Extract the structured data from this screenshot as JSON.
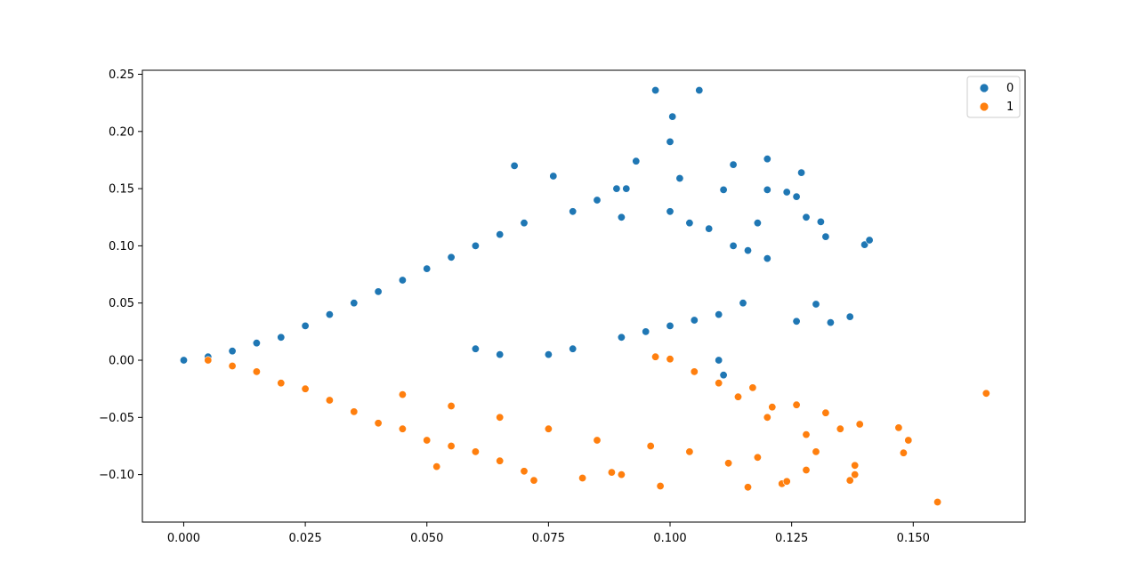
{
  "chart_data": {
    "type": "scatter",
    "title": "",
    "xlabel": "",
    "ylabel": "",
    "xlim": [
      -0.0085,
      0.173
    ],
    "ylim": [
      -0.1415,
      0.2535
    ],
    "xticks": [
      0.0,
      0.025,
      0.05,
      0.075,
      0.1,
      0.125,
      0.15
    ],
    "xtick_labels": [
      "0.000",
      "0.025",
      "0.050",
      "0.075",
      "0.100",
      "0.125",
      "0.150"
    ],
    "yticks": [
      -0.1,
      -0.05,
      0.0,
      0.05,
      0.1,
      0.15,
      0.2,
      0.25
    ],
    "ytick_labels": [
      "−0.10",
      "−0.05",
      "0.00",
      "0.05",
      "0.10",
      "0.15",
      "0.20",
      "0.25"
    ],
    "grid": false,
    "legend": {
      "position": "top-right",
      "entries": [
        "0",
        "1"
      ]
    },
    "series": [
      {
        "name": "0",
        "color": "#1f77b4",
        "points": [
          [
            0.0,
            0.0
          ],
          [
            0.005,
            0.003
          ],
          [
            0.01,
            0.008
          ],
          [
            0.015,
            0.015
          ],
          [
            0.02,
            0.02
          ],
          [
            0.025,
            0.03
          ],
          [
            0.03,
            0.04
          ],
          [
            0.035,
            0.05
          ],
          [
            0.04,
            0.06
          ],
          [
            0.045,
            0.07
          ],
          [
            0.05,
            0.08
          ],
          [
            0.055,
            0.09
          ],
          [
            0.06,
            0.1
          ],
          [
            0.065,
            0.11
          ],
          [
            0.07,
            0.12
          ],
          [
            0.068,
            0.17
          ],
          [
            0.076,
            0.161
          ],
          [
            0.093,
            0.174
          ],
          [
            0.097,
            0.236
          ],
          [
            0.106,
            0.236
          ],
          [
            0.1005,
            0.213
          ],
          [
            0.1,
            0.191
          ],
          [
            0.102,
            0.159
          ],
          [
            0.113,
            0.171
          ],
          [
            0.12,
            0.176
          ],
          [
            0.127,
            0.164
          ],
          [
            0.12,
            0.149
          ],
          [
            0.111,
            0.149
          ],
          [
            0.124,
            0.147
          ],
          [
            0.126,
            0.143
          ],
          [
            0.131,
            0.121
          ],
          [
            0.128,
            0.125
          ],
          [
            0.132,
            0.108
          ],
          [
            0.14,
            0.101
          ],
          [
            0.141,
            0.105
          ],
          [
            0.126,
            0.034
          ],
          [
            0.13,
            0.049
          ],
          [
            0.133,
            0.033
          ],
          [
            0.137,
            0.038
          ],
          [
            0.111,
            -0.013
          ],
          [
            0.11,
            0.0
          ],
          [
            0.118,
            0.12
          ],
          [
            0.12,
            0.089
          ],
          [
            0.116,
            0.096
          ],
          [
            0.113,
            0.1
          ],
          [
            0.06,
            0.01
          ],
          [
            0.065,
            0.005
          ],
          [
            0.075,
            0.005
          ],
          [
            0.08,
            0.01
          ],
          [
            0.09,
            0.02
          ],
          [
            0.095,
            0.025
          ],
          [
            0.1,
            0.03
          ],
          [
            0.105,
            0.035
          ],
          [
            0.11,
            0.04
          ],
          [
            0.115,
            0.05
          ],
          [
            0.08,
            0.13
          ],
          [
            0.085,
            0.14
          ],
          [
            0.089,
            0.15
          ],
          [
            0.091,
            0.15
          ],
          [
            0.1,
            0.13
          ],
          [
            0.104,
            0.12
          ],
          [
            0.108,
            0.115
          ],
          [
            0.09,
            0.125
          ]
        ]
      },
      {
        "name": "1",
        "color": "#ff7f0e",
        "points": [
          [
            0.005,
            0.0
          ],
          [
            0.01,
            -0.005
          ],
          [
            0.015,
            -0.01
          ],
          [
            0.02,
            -0.02
          ],
          [
            0.025,
            -0.025
          ],
          [
            0.03,
            -0.035
          ],
          [
            0.035,
            -0.045
          ],
          [
            0.04,
            -0.055
          ],
          [
            0.045,
            -0.06
          ],
          [
            0.05,
            -0.07
          ],
          [
            0.055,
            -0.075
          ],
          [
            0.06,
            -0.08
          ],
          [
            0.052,
            -0.093
          ],
          [
            0.065,
            -0.088
          ],
          [
            0.072,
            -0.105
          ],
          [
            0.07,
            -0.097
          ],
          [
            0.082,
            -0.103
          ],
          [
            0.088,
            -0.098
          ],
          [
            0.09,
            -0.1
          ],
          [
            0.098,
            -0.11
          ],
          [
            0.116,
            -0.111
          ],
          [
            0.123,
            -0.108
          ],
          [
            0.124,
            -0.106
          ],
          [
            0.128,
            -0.096
          ],
          [
            0.137,
            -0.105
          ],
          [
            0.138,
            -0.1
          ],
          [
            0.138,
            -0.092
          ],
          [
            0.148,
            -0.081
          ],
          [
            0.149,
            -0.07
          ],
          [
            0.147,
            -0.059
          ],
          [
            0.155,
            -0.124
          ],
          [
            0.165,
            -0.029
          ],
          [
            0.139,
            -0.056
          ],
          [
            0.135,
            -0.06
          ],
          [
            0.132,
            -0.046
          ],
          [
            0.126,
            -0.039
          ],
          [
            0.121,
            -0.041
          ],
          [
            0.117,
            -0.024
          ],
          [
            0.114,
            -0.032
          ],
          [
            0.097,
            0.003
          ],
          [
            0.1,
            0.001
          ],
          [
            0.105,
            -0.01
          ],
          [
            0.11,
            -0.02
          ],
          [
            0.12,
            -0.05
          ],
          [
            0.13,
            -0.08
          ],
          [
            0.128,
            -0.065
          ],
          [
            0.118,
            -0.085
          ],
          [
            0.112,
            -0.09
          ],
          [
            0.104,
            -0.08
          ],
          [
            0.096,
            -0.075
          ],
          [
            0.085,
            -0.07
          ],
          [
            0.075,
            -0.06
          ],
          [
            0.065,
            -0.05
          ],
          [
            0.055,
            -0.04
          ],
          [
            0.045,
            -0.03
          ]
        ]
      }
    ]
  }
}
